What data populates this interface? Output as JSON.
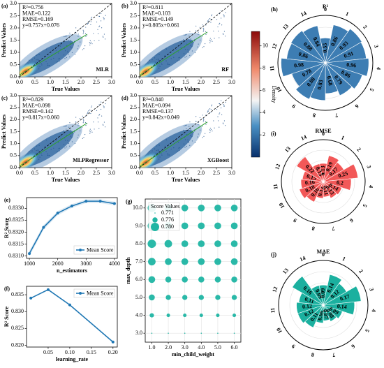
{
  "chart_data": [
    {
      "type": "density_scatter",
      "panel": "(a)",
      "stats": [
        "R²=0.756",
        "MAE=0.122",
        "RMSE=0.169",
        "y=0.757x+0.076"
      ],
      "label": "MLR",
      "fit_slope": 0.757,
      "fit_intercept": 0.076,
      "x_label": "True Values",
      "y_label": "Predict Values",
      "xlim": [
        0,
        3
      ],
      "ylim": [
        0,
        3
      ],
      "xticks": [
        {
          "value": 0,
          "label": "0.0"
        },
        0.5,
        {
          "value": 1,
          "label": "1.0"
        },
        1.5,
        {
          "value": 2,
          "label": "2.0"
        },
        2.5,
        {
          "value": 3,
          "label": "3.0"
        }
      ],
      "yticks": [
        {
          "value": 0,
          "label": "0.0"
        },
        0.5,
        {
          "value": 1,
          "label": "1.0"
        },
        1.5,
        {
          "value": 2,
          "label": "2.0"
        },
        2.5,
        {
          "value": 3,
          "label": "3.0"
        }
      ]
    },
    {
      "type": "density_scatter",
      "panel": "(b)",
      "stats": [
        "R²=0.811",
        "MAE=0.103",
        "RMSE=0.149",
        "y=0.805x+0.061"
      ],
      "label": "RF",
      "fit_slope": 0.805,
      "fit_intercept": 0.061,
      "x_label": "True Values",
      "y_label": "Predict Values",
      "xlim": [
        0,
        3
      ],
      "ylim": [
        0,
        3
      ],
      "xticks": [
        {
          "value": 0,
          "label": "0.0"
        },
        0.5,
        {
          "value": 1,
          "label": "1.0"
        },
        1.5,
        {
          "value": 2,
          "label": "2.0"
        },
        2.5,
        {
          "value": 3,
          "label": "3.0"
        }
      ],
      "yticks": [
        {
          "value": 0,
          "label": "0.0"
        },
        0.5,
        {
          "value": 1,
          "label": "1.0"
        },
        1.5,
        {
          "value": 2,
          "label": "2.0"
        },
        2.5,
        {
          "value": 3,
          "label": "3.0"
        }
      ]
    },
    {
      "type": "density_scatter",
      "panel": "(c)",
      "stats": [
        "R²=0.829",
        "MAE=0.098",
        "RMSE=0.142",
        "y=0.817x+0.060"
      ],
      "label": "MLPRegressor",
      "fit_slope": 0.817,
      "fit_intercept": 0.06,
      "x_label": "True Values",
      "y_label": "Predict Values",
      "xlim": [
        0,
        3
      ],
      "ylim": [
        0,
        3
      ],
      "xticks": [
        {
          "value": 0,
          "label": "0.0"
        },
        0.5,
        {
          "value": 1,
          "label": "1.0"
        },
        1.5,
        {
          "value": 2,
          "label": "2.0"
        },
        2.5,
        {
          "value": 3,
          "label": "3.0"
        }
      ],
      "yticks": [
        {
          "value": 0,
          "label": "0.0"
        },
        0.5,
        {
          "value": 1,
          "label": "1.0"
        },
        1.5,
        {
          "value": 2,
          "label": "2.0"
        },
        2.5,
        {
          "value": 3,
          "label": "3.0"
        }
      ]
    },
    {
      "type": "density_scatter",
      "panel": "(d)",
      "stats": [
        "R²=0.840",
        "MAE=0.094",
        "RMSE=0.137",
        "y=0.842x+0.049"
      ],
      "label": "XGBoost",
      "fit_slope": 0.842,
      "fit_intercept": 0.049,
      "x_label": "True Values",
      "y_label": "Predict Values",
      "xlim": [
        0,
        3
      ],
      "ylim": [
        0,
        3
      ],
      "xticks": [
        {
          "value": 0,
          "label": "0.0"
        },
        0.5,
        {
          "value": 1,
          "label": "1.0"
        },
        1.5,
        {
          "value": 2,
          "label": "2.0"
        },
        2.5,
        {
          "value": 3,
          "label": "3.0"
        }
      ],
      "yticks": [
        {
          "value": 0,
          "label": "0.0"
        },
        0.5,
        {
          "value": 1,
          "label": "1.0"
        },
        1.5,
        {
          "value": 2,
          "label": "2.0"
        },
        2.5,
        {
          "value": 3,
          "label": "3.0"
        }
      ]
    },
    {
      "type": "colorbar",
      "label": "Density",
      "ylim": [
        0,
        11.3
      ],
      "yticks": [
        2,
        4,
        6,
        8,
        10
      ]
    },
    {
      "type": "line",
      "panel": "(e)",
      "x_label": "n_estimators",
      "y_label": "R² Score",
      "legend": "lower right",
      "color": "#1f77b4",
      "series": [
        {
          "name": "Mean Score",
          "x": [
            1000,
            1500,
            2000,
            2500,
            3000,
            3500,
            4000
          ],
          "values": [
            0.8311,
            0.8322,
            0.8328,
            0.8331,
            0.8333,
            0.8333,
            0.8332
          ],
          "errors": [
            0.00012,
            0.0001,
            9e-05,
            8e-05,
            8e-05,
            8e-05,
            8e-05
          ]
        }
      ],
      "xlim": [
        900,
        4100
      ],
      "xticks": [
        1000,
        2000,
        3000,
        4000
      ],
      "ylim": [
        0.8309,
        0.83345
      ],
      "yticks": [
        {
          "value": 0.831,
          "label": "0.8310"
        },
        0.8315,
        {
          "value": 0.832,
          "label": "0.8320"
        },
        0.8325,
        {
          "value": 0.833,
          "label": "0.8330"
        }
      ]
    },
    {
      "type": "line",
      "panel": "(f)",
      "x_label": "learning_rate",
      "y_label": "R² Score",
      "legend": "upper right",
      "color": "#1f77b4",
      "series": [
        {
          "name": "Mean Score",
          "x": [
            0.01,
            0.05,
            0.1,
            0.2
          ],
          "values": [
            0.834,
            0.8365,
            0.832,
            0.821
          ]
        }
      ],
      "xlim": [
        0.0,
        0.21
      ],
      "xticks": [
        0.05,
        {
          "value": 0.1,
          "label": "0.10"
        },
        0.15,
        {
          "value": 0.2,
          "label": "0.20"
        }
      ],
      "ylim": [
        0.8195,
        0.8375
      ],
      "yticks": [
        {
          "value": 0.82,
          "label": "0.820"
        },
        0.825,
        {
          "value": 0.83,
          "label": "0.830"
        },
        0.835
      ]
    },
    {
      "type": "bubble",
      "panel": "(g)",
      "x_label": "min_child_weight",
      "y_label": "max_depth",
      "legend_title": "Score Values",
      "color": "#1fb5a3",
      "size_legend": [
        0.771,
        0.776,
        {
          "value": 0.78,
          "label": "0.780"
        }
      ],
      "x": [
        1,
        2,
        3,
        4,
        5,
        6,
        1,
        2,
        3,
        4,
        5,
        6,
        1,
        2,
        3,
        4,
        5,
        6,
        1,
        2,
        3,
        4,
        5,
        6,
        1,
        2,
        3,
        4,
        5,
        6,
        1,
        2,
        3,
        4,
        5,
        6,
        1,
        2,
        3,
        4,
        5,
        6,
        1,
        2,
        3,
        4,
        5,
        6
      ],
      "y": [
        3,
        3,
        3,
        3,
        3,
        3,
        4,
        4,
        4,
        4,
        4,
        4,
        5,
        5,
        5,
        5,
        5,
        5,
        6,
        6,
        6,
        6,
        6,
        6,
        7,
        7,
        7,
        7,
        7,
        7,
        8,
        8,
        8,
        8,
        8,
        8,
        9,
        9,
        9,
        9,
        9,
        9,
        10,
        10,
        10,
        10,
        10,
        10
      ],
      "values": [
        0.771,
        0.771,
        0.771,
        0.771,
        0.771,
        0.771,
        0.775,
        0.774,
        0.774,
        0.774,
        0.774,
        0.774,
        0.777,
        0.776,
        0.776,
        0.776,
        0.776,
        0.776,
        0.778,
        0.777,
        0.777,
        0.777,
        0.777,
        0.777,
        0.779,
        0.778,
        0.778,
        0.778,
        0.778,
        0.778,
        0.78,
        0.779,
        0.778,
        0.778,
        0.778,
        0.778,
        0.78,
        0.779,
        0.778,
        0.778,
        0.778,
        0.778,
        0.78,
        0.779,
        0.778,
        0.778,
        0.778,
        0.778
      ],
      "xlim": [
        0.6,
        6.4
      ],
      "xticks": [
        {
          "value": 1,
          "label": "1.0"
        },
        {
          "value": 2,
          "label": "2.0"
        },
        {
          "value": 3,
          "label": "3.0"
        },
        {
          "value": 4,
          "label": "4.0"
        },
        {
          "value": 5,
          "label": "5.0"
        },
        {
          "value": 6,
          "label": "6.0"
        }
      ],
      "ylim": [
        2.5,
        10.5
      ],
      "yticks": [
        {
          "value": 3,
          "label": "3.0"
        },
        {
          "value": 4,
          "label": "4.0"
        },
        {
          "value": 5,
          "label": "5.0"
        },
        {
          "value": 6,
          "label": "6.0"
        },
        {
          "value": 7,
          "label": "7.0"
        },
        {
          "value": 8,
          "label": "8.0"
        },
        {
          "value": 9,
          "label": "9.0"
        },
        {
          "value": 10,
          "label": "10.0"
        }
      ],
      "grid": true
    },
    {
      "type": "polar_bar",
      "panel": "(h)",
      "title": "R²",
      "color": "#3d7db3",
      "rlim": [
        0,
        1.05
      ],
      "categories": [
        "0",
        "1",
        "2",
        "3",
        "4",
        "5",
        "6",
        "7",
        "8",
        "9",
        "10",
        "11",
        "12",
        "13",
        "14"
      ],
      "values": [
        0.55,
        0.86,
        0.93,
        0.91,
        0.96,
        0.86,
        0.79,
        0.68,
        0.83,
        0.88,
        0.78,
        0.98,
        0.86,
        0.88,
        0.84
      ]
    },
    {
      "type": "polar_bar",
      "panel": "(i)",
      "title": "RMSE",
      "color": "#f25858",
      "rlim": [
        0,
        0.3
      ],
      "categories": [
        "0",
        "1",
        "2",
        "3",
        "4",
        "5",
        "6",
        "7",
        "8",
        "9",
        "10",
        "11",
        "12",
        "13",
        "14"
      ],
      "values": [
        0.13,
        0.19,
        0.17,
        0.25,
        0.2,
        0.14,
        0.13,
        0.11,
        0.12,
        0.16,
        0.18,
        0.16,
        0.15,
        0.22,
        0.13
      ]
    },
    {
      "type": "polar_bar",
      "panel": "(j)",
      "title": "MAE",
      "color": "#1bb09f",
      "rlim": [
        0,
        0.2
      ],
      "categories": [
        "0",
        "1",
        "2",
        "3",
        "4",
        "5",
        "6",
        "7",
        "8",
        "9",
        "10",
        "11",
        "12",
        "13",
        "14"
      ],
      "values": [
        0.09,
        0.14,
        0.12,
        0.17,
        0.14,
        0.09,
        0.08,
        0.07,
        0.08,
        0.11,
        0.12,
        0.12,
        0.11,
        0.16,
        0.09
      ]
    }
  ]
}
